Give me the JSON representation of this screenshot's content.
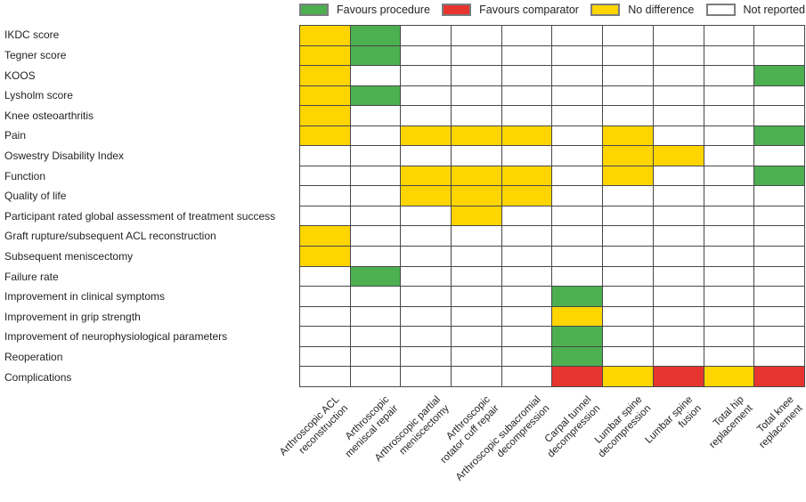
{
  "chart_data": {
    "type": "heatmap",
    "title": "",
    "legend_position": "top",
    "x_tick_rotation": -45,
    "legend": [
      {
        "code": "G",
        "label": "Favours procedure",
        "color": "#4CAF50"
      },
      {
        "code": "R",
        "label": "Favours comparator",
        "color": "#E6352F"
      },
      {
        "code": "Y",
        "label": "No difference",
        "color": "#FED500"
      },
      {
        "code": "W",
        "label": "Not reported",
        "color": "#FFFFFF"
      }
    ],
    "colors": {
      "G": "#4CAF50",
      "R": "#E6352F",
      "Y": "#FED500",
      "W": "#FFFFFF"
    },
    "value_meanings": {
      "G": "Favours procedure",
      "R": "Favours comparator",
      "Y": "No difference",
      "W": "Not reported"
    },
    "rows": [
      "IKDC score",
      "Tegner score",
      "KOOS",
      "Lysholm score",
      "Knee osteoarthritis",
      "Pain",
      "Oswestry Disability Index",
      "Function",
      "Quality of life",
      "Participant rated global assessment of treatment success",
      "Graft rupture/subsequent ACL reconstruction",
      "Subsequent meniscectomy",
      "Failure rate",
      "Improvement in clinical symptoms",
      "Improvement in grip strength",
      "Improvement of neurophysiological parameters",
      "Reoperation",
      "Complications"
    ],
    "columns": [
      {
        "label": "Arthroscopic ACL reconstruction",
        "lines": [
          "Arthroscopic ACL",
          "reconstruction"
        ]
      },
      {
        "label": "Arthroscopic meniscal repair",
        "lines": [
          "Arthroscopic",
          "meniscal repair"
        ]
      },
      {
        "label": "Arthroscopic partial meniscectomy",
        "lines": [
          "Arthroscopic partial",
          "meniscectomy"
        ]
      },
      {
        "label": "Arthroscopic rotator cuff repair",
        "lines": [
          "Arthroscopic",
          "rotator cuff repair"
        ]
      },
      {
        "label": "Arthroscopic subacromial decompression",
        "lines": [
          "Arthroscopic subacromial",
          "decompression"
        ]
      },
      {
        "label": "Carpal tunnel decompression",
        "lines": [
          "Carpal tunnel",
          "decompression"
        ]
      },
      {
        "label": "Lumbar spine decompression",
        "lines": [
          "Lumbar spine",
          "decompression"
        ]
      },
      {
        "label": "Lumbar spine fusion",
        "lines": [
          "Lumbar spine",
          "fusion"
        ]
      },
      {
        "label": "Total hip replacement",
        "lines": [
          "Total hip",
          "replacement"
        ]
      },
      {
        "label": "Total knee replacement",
        "lines": [
          "Total knee",
          "replacement"
        ]
      }
    ],
    "values": [
      [
        "Y",
        "G",
        "W",
        "W",
        "W",
        "W",
        "W",
        "W",
        "W",
        "W"
      ],
      [
        "Y",
        "G",
        "W",
        "W",
        "W",
        "W",
        "W",
        "W",
        "W",
        "W"
      ],
      [
        "Y",
        "W",
        "W",
        "W",
        "W",
        "W",
        "W",
        "W",
        "W",
        "G"
      ],
      [
        "Y",
        "G",
        "W",
        "W",
        "W",
        "W",
        "W",
        "W",
        "W",
        "W"
      ],
      [
        "Y",
        "W",
        "W",
        "W",
        "W",
        "W",
        "W",
        "W",
        "W",
        "W"
      ],
      [
        "Y",
        "W",
        "Y",
        "Y",
        "Y",
        "W",
        "Y",
        "W",
        "W",
        "G"
      ],
      [
        "W",
        "W",
        "W",
        "W",
        "W",
        "W",
        "Y",
        "Y",
        "W",
        "W"
      ],
      [
        "W",
        "W",
        "Y",
        "Y",
        "Y",
        "W",
        "Y",
        "W",
        "W",
        "G"
      ],
      [
        "W",
        "W",
        "Y",
        "Y",
        "Y",
        "W",
        "W",
        "W",
        "W",
        "W"
      ],
      [
        "W",
        "W",
        "W",
        "Y",
        "W",
        "W",
        "W",
        "W",
        "W",
        "W"
      ],
      [
        "Y",
        "W",
        "W",
        "W",
        "W",
        "W",
        "W",
        "W",
        "W",
        "W"
      ],
      [
        "Y",
        "W",
        "W",
        "W",
        "W",
        "W",
        "W",
        "W",
        "W",
        "W"
      ],
      [
        "W",
        "G",
        "W",
        "W",
        "W",
        "W",
        "W",
        "W",
        "W",
        "W"
      ],
      [
        "W",
        "W",
        "W",
        "W",
        "W",
        "G",
        "W",
        "W",
        "W",
        "W"
      ],
      [
        "W",
        "W",
        "W",
        "W",
        "W",
        "Y",
        "W",
        "W",
        "W",
        "W"
      ],
      [
        "W",
        "W",
        "W",
        "W",
        "W",
        "G",
        "W",
        "W",
        "W",
        "W"
      ],
      [
        "W",
        "W",
        "W",
        "W",
        "W",
        "G",
        "W",
        "W",
        "W",
        "W"
      ],
      [
        "W",
        "W",
        "W",
        "W",
        "W",
        "R",
        "Y",
        "R",
        "Y",
        "R"
      ]
    ]
  }
}
